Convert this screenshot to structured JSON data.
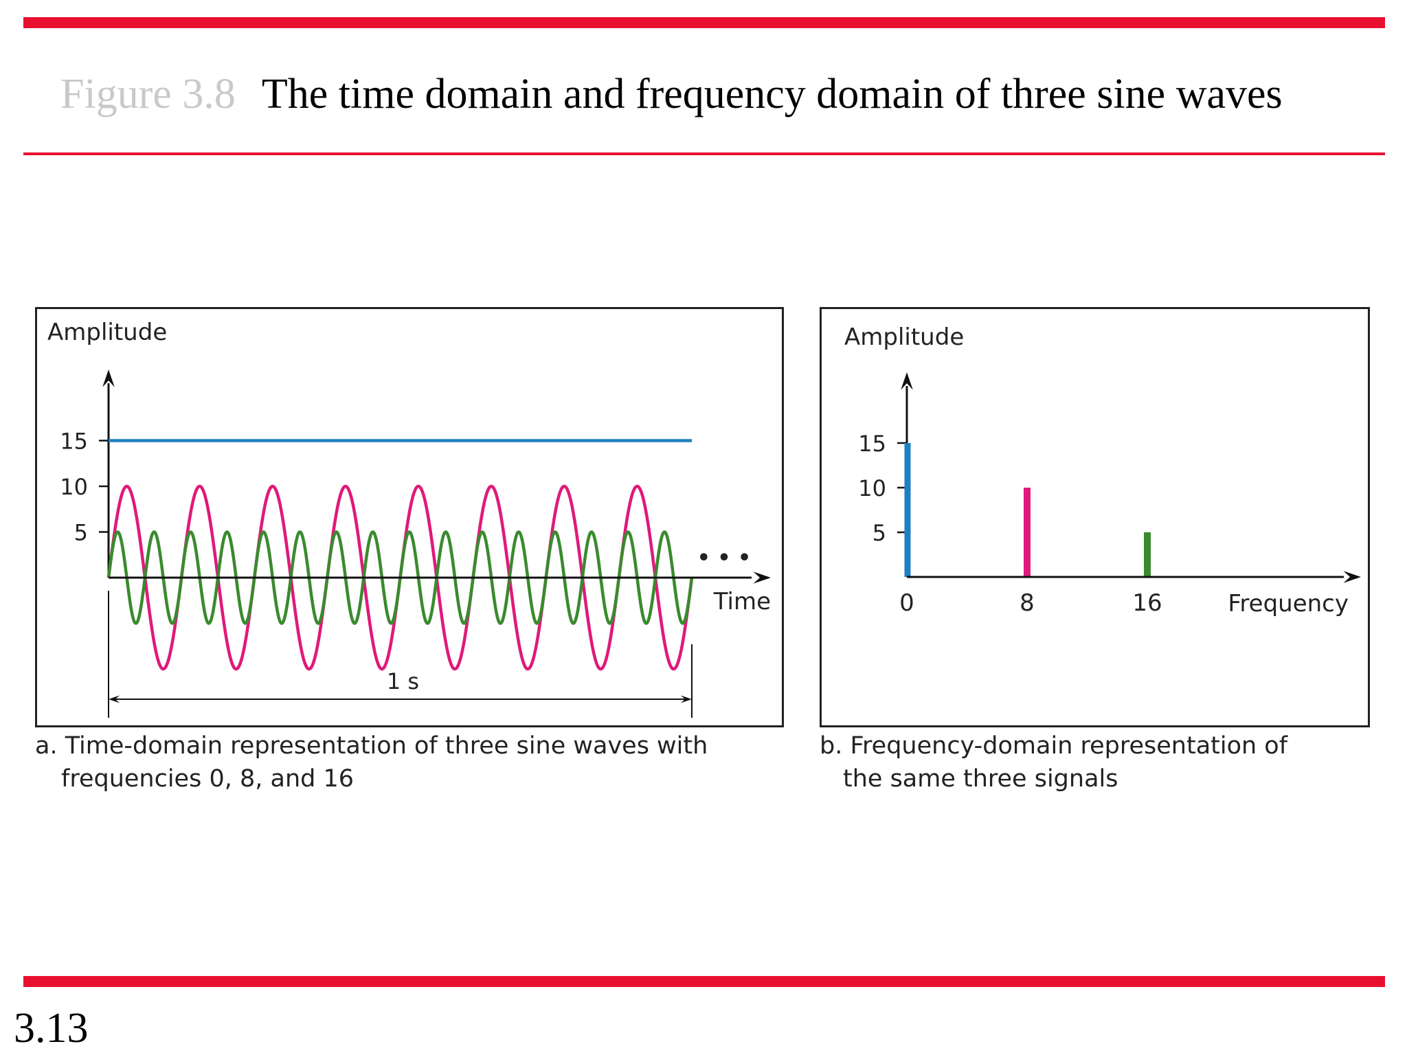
{
  "slide": {
    "figure_label": "Figure 3.8",
    "title": "The time domain and frequency domain of three sine waves",
    "page_number": "3.13"
  },
  "colors": {
    "accent_red": "#e8102e",
    "series_blue": "#1f7fc0",
    "series_pink": "#e0197a",
    "series_green": "#3a8a2e"
  },
  "chart_data": [
    {
      "type": "line",
      "panel": "a",
      "ylabel": "Amplitude",
      "xlabel": "Time",
      "yticks": [
        15,
        10,
        5
      ],
      "ylim": [
        -10,
        15
      ],
      "xlim": [
        0,
        1
      ],
      "continuation": "• • •",
      "duration_label": "1 s",
      "series": [
        {
          "frequency": 0,
          "amplitude": 15,
          "color": "#1f7fc0"
        },
        {
          "frequency": 8,
          "amplitude": 10,
          "color": "#e0197a"
        },
        {
          "frequency": 16,
          "amplitude": 5,
          "color": "#3a8a2e"
        }
      ],
      "caption_line1": "a. Time-domain representation of three sine waves with",
      "caption_line2": "frequencies 0, 8, and 16"
    },
    {
      "type": "bar",
      "panel": "b",
      "ylabel": "Amplitude",
      "xlabel": "Frequency",
      "yticks": [
        15,
        10,
        5
      ],
      "ylim": [
        0,
        15
      ],
      "categories": [
        "0",
        "8",
        "16"
      ],
      "values": [
        15,
        10,
        5
      ],
      "colors": [
        "#1f7fc0",
        "#e0197a",
        "#3a8a2e"
      ],
      "caption_line1": "b. Frequency-domain representation of",
      "caption_line2": "the same three signals"
    }
  ]
}
